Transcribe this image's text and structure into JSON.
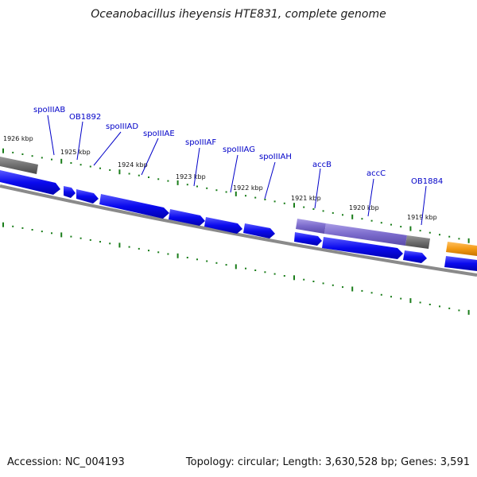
{
  "title": "Oceanobacillus iheyensis HTE831, complete genome",
  "footer": {
    "accession": "Accession: NC_004193",
    "summary": "Topology: circular; Length: 3,630,528 bp; Genes: 3,591"
  },
  "colors": {
    "cds": "#0a0aee",
    "rna_gray": "#6f6f6f",
    "accB_accC": "#7a6acb",
    "orange_gene": "#f39a14",
    "backbone": "#8a8a8a",
    "tick_green": "#1a7d1a",
    "label_blue": "#0000c8"
  },
  "kbp_labels": [
    "1926 kbp",
    "1925 kbp",
    "1924 kbp",
    "1923 kbp",
    "1922 kbp",
    "1921 kbp",
    "1920 kbp",
    "1919 kbp"
  ],
  "gene_labels": [
    "spoIIIAB",
    "OB1892",
    "spoIIIAD",
    "spoIIIAE",
    "spoIIIAF",
    "spoIIIAG",
    "spoIIIAH",
    "accB",
    "accC",
    "OB1884"
  ]
}
